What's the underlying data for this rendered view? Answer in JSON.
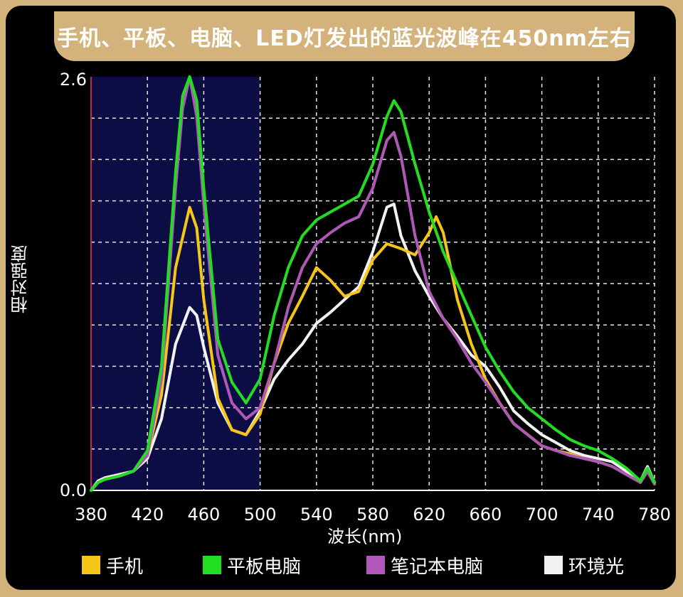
{
  "chart_data": {
    "type": "line",
    "title": "手机、平板、电脑、LED灯发出的蓝光波峰在450nm左右",
    "xlabel": "波长(nm)",
    "ylabel": "相对强度",
    "xlim": [
      380,
      780
    ],
    "ylim": [
      0,
      2.6
    ],
    "xticks": [
      380,
      420,
      460,
      500,
      540,
      580,
      620,
      660,
      700,
      740,
      780
    ],
    "xtick_labels": [
      "380",
      "420",
      "460",
      "500",
      "540",
      "580",
      "620",
      "660",
      "700",
      "740",
      "780"
    ],
    "yticks": [
      0,
      2.6
    ],
    "ytick_labels": [
      "0.0",
      "2.6"
    ],
    "grid": true,
    "highlight_range": [
      380,
      500
    ],
    "legend_position": "bottom",
    "series": [
      {
        "name": "环境光",
        "color": "#f2f2f2",
        "x": [
          380,
          385,
          390,
          400,
          410,
          420,
          430,
          440,
          450,
          455,
          460,
          470,
          480,
          490,
          500,
          510,
          520,
          530,
          540,
          550,
          560,
          570,
          580,
          590,
          595,
          600,
          610,
          620,
          630,
          640,
          650,
          660,
          670,
          680,
          690,
          700,
          710,
          720,
          730,
          740,
          750,
          760,
          770,
          775,
          780
        ],
        "y": [
          0.0,
          0.06,
          0.08,
          0.1,
          0.12,
          0.2,
          0.45,
          0.92,
          1.15,
          1.1,
          0.9,
          0.55,
          0.38,
          0.35,
          0.5,
          0.7,
          0.82,
          0.92,
          1.05,
          1.12,
          1.2,
          1.28,
          1.5,
          1.78,
          1.8,
          1.6,
          1.38,
          1.22,
          1.08,
          0.97,
          0.85,
          0.78,
          0.65,
          0.5,
          0.42,
          0.35,
          0.3,
          0.25,
          0.22,
          0.2,
          0.18,
          0.12,
          0.06,
          0.15,
          0.05
        ]
      },
      {
        "name": "手机",
        "color": "#f5c518",
        "x": [
          380,
          385,
          390,
          400,
          410,
          420,
          430,
          440,
          450,
          455,
          460,
          470,
          480,
          490,
          500,
          510,
          520,
          530,
          540,
          550,
          560,
          570,
          580,
          590,
          600,
          610,
          620,
          625,
          630,
          640,
          650,
          660,
          670,
          680,
          690,
          700,
          710,
          720,
          730,
          740,
          750,
          760,
          770,
          775,
          780
        ],
        "y": [
          0.0,
          0.05,
          0.07,
          0.09,
          0.12,
          0.22,
          0.6,
          1.4,
          1.78,
          1.65,
          1.2,
          0.58,
          0.38,
          0.35,
          0.48,
          0.8,
          1.05,
          1.22,
          1.4,
          1.32,
          1.22,
          1.25,
          1.45,
          1.55,
          1.52,
          1.48,
          1.62,
          1.72,
          1.62,
          1.2,
          0.92,
          0.7,
          0.55,
          0.42,
          0.35,
          0.28,
          0.25,
          0.23,
          0.2,
          0.18,
          0.15,
          0.1,
          0.05,
          0.12,
          0.04
        ]
      },
      {
        "name": "笔记本电脑",
        "color": "#b058b8",
        "x": [
          380,
          385,
          390,
          400,
          410,
          420,
          430,
          440,
          445,
          450,
          455,
          460,
          470,
          480,
          490,
          500,
          510,
          520,
          530,
          540,
          550,
          560,
          570,
          580,
          590,
          595,
          600,
          610,
          620,
          630,
          640,
          650,
          660,
          670,
          680,
          690,
          700,
          710,
          720,
          730,
          740,
          750,
          760,
          770,
          775,
          780
        ],
        "y": [
          0.0,
          0.05,
          0.07,
          0.09,
          0.12,
          0.22,
          0.7,
          1.9,
          2.4,
          2.6,
          2.35,
          1.8,
          0.85,
          0.55,
          0.45,
          0.52,
          0.8,
          1.15,
          1.4,
          1.55,
          1.62,
          1.68,
          1.72,
          1.9,
          2.2,
          2.25,
          2.1,
          1.6,
          1.25,
          1.08,
          0.95,
          0.8,
          0.68,
          0.55,
          0.42,
          0.35,
          0.28,
          0.25,
          0.22,
          0.2,
          0.18,
          0.15,
          0.1,
          0.05,
          0.12,
          0.04
        ]
      },
      {
        "name": "平板电脑",
        "color": "#22dd22",
        "x": [
          380,
          385,
          390,
          400,
          410,
          420,
          430,
          440,
          445,
          450,
          455,
          460,
          470,
          480,
          490,
          500,
          510,
          520,
          530,
          540,
          550,
          560,
          570,
          580,
          590,
          595,
          600,
          610,
          620,
          630,
          640,
          650,
          660,
          670,
          680,
          690,
          700,
          710,
          720,
          730,
          740,
          750,
          760,
          770,
          775,
          780
        ],
        "y": [
          0.0,
          0.05,
          0.07,
          0.09,
          0.12,
          0.25,
          0.78,
          2.0,
          2.48,
          2.6,
          2.45,
          1.9,
          0.95,
          0.68,
          0.55,
          0.7,
          1.1,
          1.4,
          1.6,
          1.7,
          1.75,
          1.8,
          1.85,
          2.05,
          2.35,
          2.45,
          2.38,
          2.05,
          1.75,
          1.5,
          1.3,
          1.1,
          0.9,
          0.75,
          0.62,
          0.52,
          0.45,
          0.38,
          0.32,
          0.28,
          0.25,
          0.2,
          0.14,
          0.06,
          0.14,
          0.05
        ]
      }
    ]
  }
}
